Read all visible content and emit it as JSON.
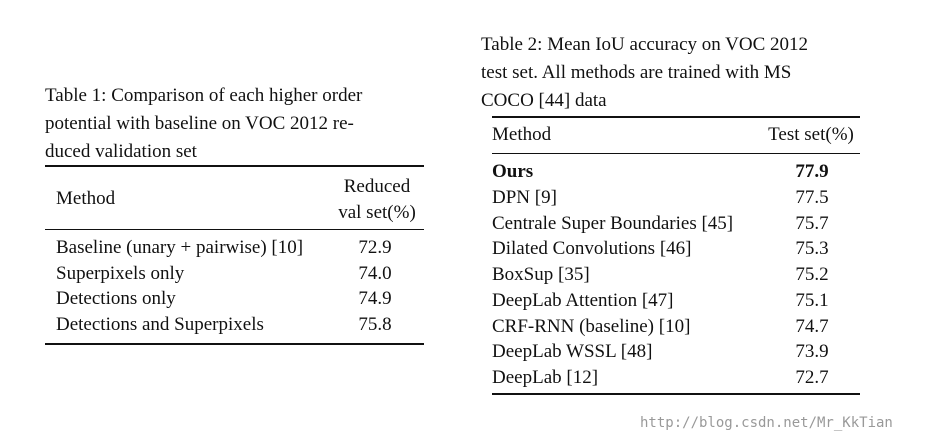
{
  "table1": {
    "caption": [
      "Table 1: Comparison of each higher order",
      "potential with baseline on VOC 2012 re-",
      "duced validation set"
    ],
    "header": {
      "method": "Method",
      "value": [
        "Reduced",
        "val set(%)"
      ]
    },
    "rows": [
      [
        "Baseline (unary + pairwise) [10]",
        "72.9"
      ],
      [
        "Superpixels only",
        "74.0"
      ],
      [
        "Detections only",
        "74.9"
      ],
      [
        "Detections and Superpixels",
        "75.8"
      ]
    ]
  },
  "table2": {
    "caption": [
      "Table 2: Mean IoU accuracy on VOC 2012",
      "test set. All methods are trained with MS",
      "COCO [44] data"
    ],
    "header": {
      "method": "Method",
      "value": "Test set(%)"
    },
    "rows": [
      [
        "Ours",
        "77.9"
      ],
      [
        "DPN [9]",
        "77.5"
      ],
      [
        "Centrale Super Boundaries [45]",
        "75.7"
      ],
      [
        "Dilated Convolutions [46]",
        "75.3"
      ],
      [
        "BoxSup [35]",
        "75.2"
      ],
      [
        "DeepLab Attention [47]",
        "75.1"
      ],
      [
        "CRF-RNN (baseline) [10]",
        "74.7"
      ],
      [
        "DeepLab WSSL [48]",
        "73.9"
      ],
      [
        "DeepLab [12]",
        "72.7"
      ]
    ]
  },
  "watermark": "http://blog.csdn.net/Mr_KkTian"
}
